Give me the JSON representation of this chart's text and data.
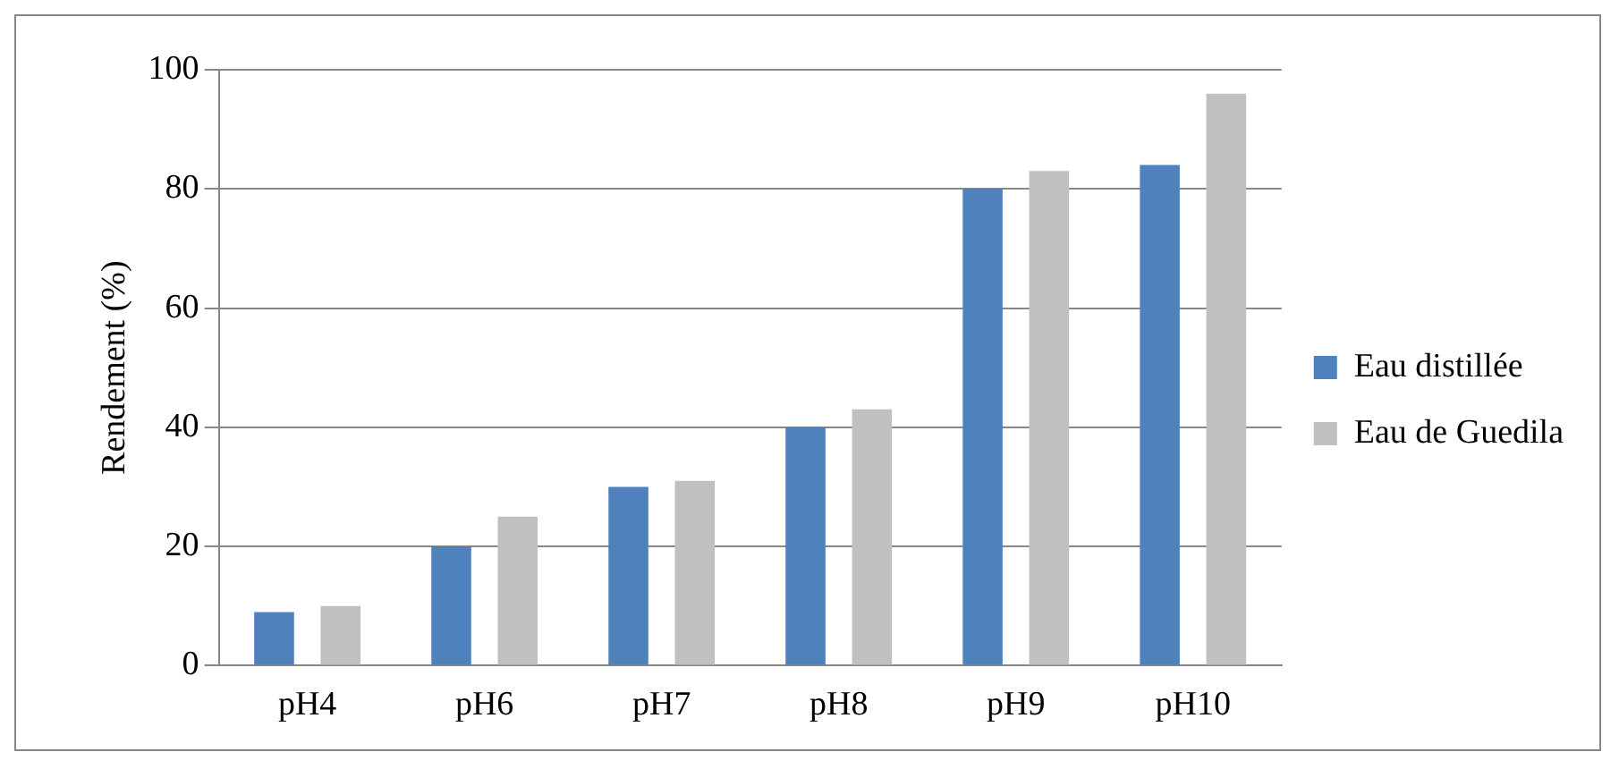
{
  "chart_data": {
    "type": "bar",
    "ylabel": "Rendement (%)",
    "categories": [
      "pH4",
      "pH6",
      "pH7",
      "pH8",
      "pH9",
      "pH10"
    ],
    "series": [
      {
        "name": "Eau distillée",
        "color": "#4f81bd",
        "values": [
          9,
          20,
          30,
          40,
          80,
          84
        ]
      },
      {
        "name": "Eau de Guedila",
        "color": "#c0c0c0",
        "values": [
          10,
          25,
          31,
          43,
          83,
          96
        ]
      }
    ],
    "ylim": [
      0,
      100
    ],
    "yticks": [
      0,
      20,
      40,
      60,
      80,
      100
    ],
    "grid": "y",
    "legend": "right"
  }
}
